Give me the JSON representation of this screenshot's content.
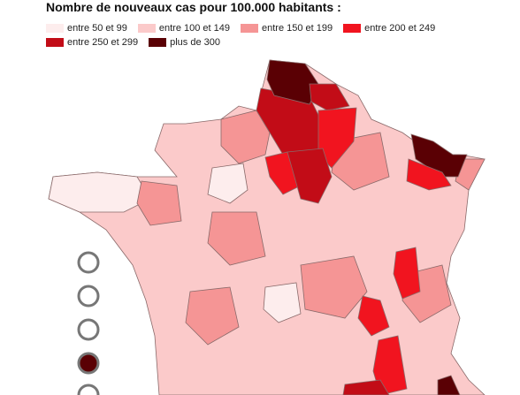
{
  "header": {
    "title": "Nombre de nouveaux cas pour 100.000 habitants :"
  },
  "legend": {
    "items": [
      {
        "label": "entre 50 et 99",
        "color": "#fdeded"
      },
      {
        "label": "entre 100 et 149",
        "color": "#fbcaca"
      },
      {
        "label": "entre 150 et 199",
        "color": "#f59595"
      },
      {
        "label": "entre 200 et 249",
        "color": "#f1141f"
      },
      {
        "label": "entre 250 et 299",
        "color": "#c20c17"
      },
      {
        "label": "plus de 300",
        "color": "#5a0004"
      }
    ]
  }
}
